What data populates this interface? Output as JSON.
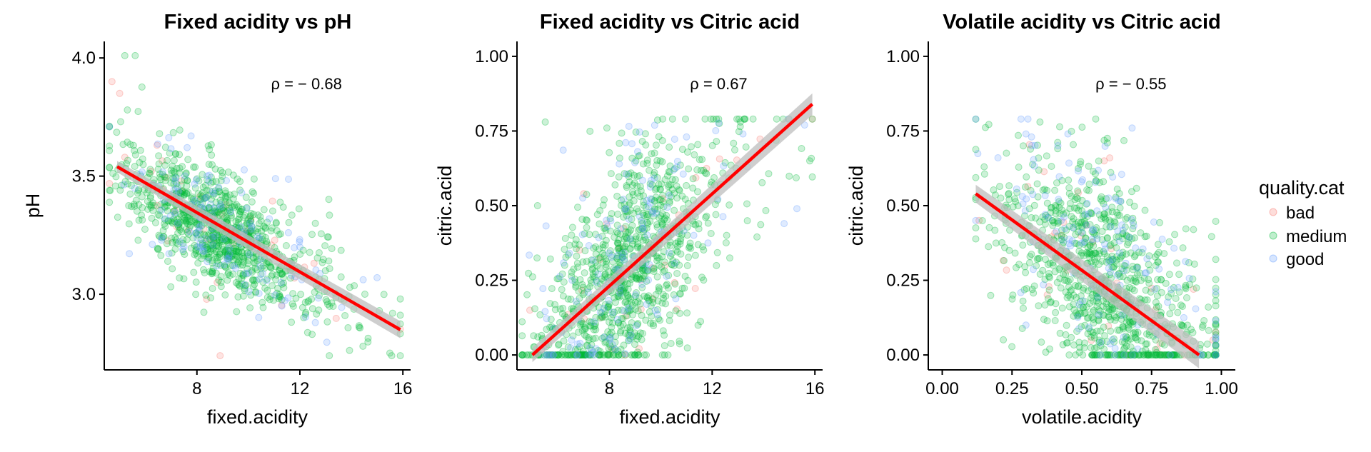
{
  "colors": {
    "bad": "#F8766D",
    "medium": "#00BA38",
    "good": "#619CFF",
    "fit_line": "#FF0000",
    "confidence_band": "#BEBEBE"
  },
  "legend": {
    "title": "quality.cat",
    "items": [
      {
        "label": "bad",
        "color_key": "bad"
      },
      {
        "label": "medium",
        "color_key": "medium"
      },
      {
        "label": "good",
        "color_key": "good"
      }
    ]
  },
  "chart_data": [
    {
      "type": "scatter",
      "title": "Fixed acidity vs pH",
      "xlabel": "fixed.acidity",
      "ylabel": "pH",
      "xlim": [
        4.4,
        16.3
      ],
      "ylim": [
        2.68,
        4.07
      ],
      "xticks": [
        8,
        12,
        16
      ],
      "xtick_labels": [
        "8",
        "12",
        "16"
      ],
      "yticks": [
        3.0,
        3.5,
        4.0
      ],
      "ytick_labels": [
        "3.0",
        "3.5",
        "4.0"
      ],
      "annotation": "ρ = − 0.68",
      "correlation": -0.68,
      "fit_line": {
        "x": [
          4.9,
          15.9
        ],
        "y": [
          3.54,
          2.85
        ]
      },
      "band_halfwidth": 0.012,
      "point_model": {
        "center": 8.3,
        "x_spread": 1.7,
        "x_min": 4.6,
        "x_max": 15.9,
        "y_intercept": 3.31,
        "slope": -0.063,
        "noise": 0.12,
        "y_min": 2.74,
        "y_max": 4.01
      },
      "series": [
        {
          "name": "bad",
          "n": 40,
          "x": [
            4.7,
            5.0,
            5.2,
            7.4,
            8.9,
            10.1
          ],
          "y": [
            3.9,
            3.85,
            3.58,
            3.48,
            2.74,
            3.32
          ]
        },
        {
          "name": "medium",
          "n": 950,
          "x": [
            5.2,
            5.6,
            5.3,
            12.6,
            14.3,
            15.6,
            15.9
          ],
          "y": [
            4.01,
            4.01,
            3.78,
            3.3,
            2.86,
            2.92,
            2.98
          ]
        },
        {
          "name": "good",
          "n": 150,
          "x": [
            10.5,
            11.3,
            12.0,
            12.6,
            15.0
          ],
          "y": [
            3.15,
            2.95,
            3.2,
            2.88,
            3.07
          ]
        }
      ]
    },
    {
      "type": "scatter",
      "title": "Fixed acidity vs Citric acid",
      "xlabel": "fixed.acidity",
      "ylabel": "citric.acid",
      "xlim": [
        4.4,
        16.3
      ],
      "ylim": [
        -0.05,
        1.05
      ],
      "xticks": [
        8,
        12,
        16
      ],
      "xtick_labels": [
        "8",
        "12",
        "16"
      ],
      "yticks": [
        0.0,
        0.25,
        0.5,
        0.75,
        1.0
      ],
      "ytick_labels": [
        "0.00",
        "0.25",
        "0.50",
        "0.75",
        "1.00"
      ],
      "annotation": "ρ = 0.67",
      "correlation": 0.67,
      "fit_line": {
        "x": [
          5.0,
          15.9
        ],
        "y": [
          0.0,
          0.84
        ]
      },
      "band_halfwidth": 0.012,
      "point_model": {
        "center": 8.3,
        "x_spread": 1.7,
        "x_min": 4.6,
        "x_max": 15.9,
        "y_intercept": 0.25,
        "slope": 0.075,
        "noise": 0.17,
        "y_min": 0.0,
        "y_max": 0.79
      },
      "series": [
        {
          "name": "bad",
          "n": 40,
          "x": [
            4.9,
            7.0,
            7.6,
            8.1
          ],
          "y": [
            0.15,
            0.54,
            0.0,
            0.02
          ]
        },
        {
          "name": "medium",
          "n": 950,
          "x": [
            5.5,
            5.2,
            7.9,
            13.1,
            15.8
          ],
          "y": [
            0.78,
            0.5,
            0.76,
            0.78,
            0.65
          ]
        },
        {
          "name": "good",
          "n": 150,
          "x": [
            11.0,
            13.2,
            14.8,
            15.3,
            15.6
          ],
          "y": [
            0.73,
            0.74,
            0.44,
            0.49,
            0.77
          ]
        }
      ]
    },
    {
      "type": "scatter",
      "title": "Volatile acidity vs Citric acid",
      "xlabel": "volatile.acidity",
      "ylabel": "citric.acid",
      "xlim": [
        -0.05,
        1.05
      ],
      "ylim": [
        -0.05,
        1.05
      ],
      "xticks": [
        0.0,
        0.25,
        0.5,
        0.75,
        1.0
      ],
      "xtick_labels": [
        "0.00",
        "0.25",
        "0.50",
        "0.75",
        "1.00"
      ],
      "yticks": [
        0.0,
        0.25,
        0.5,
        0.75,
        1.0
      ],
      "ytick_labels": [
        "0.00",
        "0.25",
        "0.50",
        "0.75",
        "1.00"
      ],
      "annotation": "ρ = − 0.55",
      "correlation": -0.55,
      "fit_line": {
        "x": [
          0.12,
          0.92
        ],
        "y": [
          0.54,
          0.0
        ]
      },
      "band_halfwidth": 0.015,
      "point_model": {
        "center": 0.53,
        "x_spread": 0.17,
        "x_min": 0.12,
        "x_max": 0.98,
        "y_intercept": 0.27,
        "slope": -0.65,
        "noise": 0.17,
        "y_min": 0.0,
        "y_max": 0.79
      },
      "series": [
        {
          "name": "bad",
          "n": 40,
          "x": [
            0.9,
            0.97,
            0.78,
            0.6,
            0.58
          ],
          "y": [
            0.22,
            0.05,
            0.04,
            0.66,
            0.65
          ]
        },
        {
          "name": "medium",
          "n": 950,
          "x": [
            0.15,
            0.24,
            0.35,
            0.55,
            0.98,
            0.9
          ],
          "y": [
            0.63,
            0.35,
            0.78,
            0.79,
            0.32,
            0.42
          ]
        },
        {
          "name": "good",
          "n": 150,
          "x": [
            0.12,
            0.3,
            0.32,
            0.45,
            0.68,
            0.3
          ],
          "y": [
            0.45,
            0.74,
            0.73,
            0.74,
            0.76,
            0.1
          ]
        }
      ]
    }
  ]
}
